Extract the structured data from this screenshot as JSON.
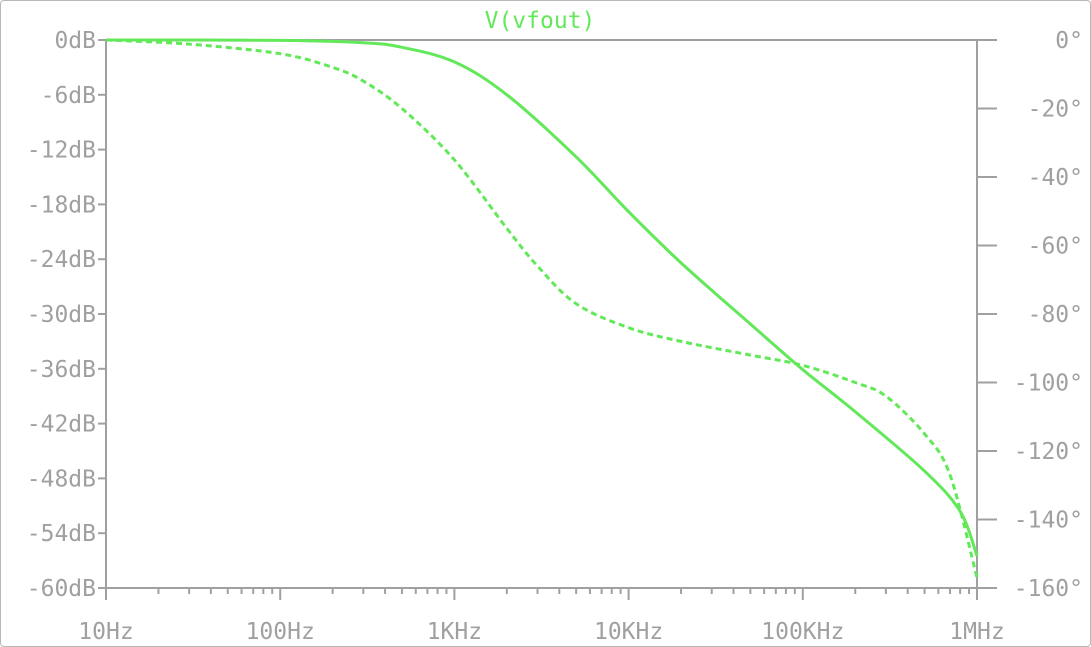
{
  "chart_data": {
    "type": "line",
    "title": "V(vfout)",
    "x_scale": "log",
    "x_ticks": [
      10,
      100,
      1000,
      10000,
      100000,
      1000000
    ],
    "x_tick_labels": [
      "10Hz",
      "100Hz",
      "1KHz",
      "10KHz",
      "100KHz",
      "1MHz"
    ],
    "xlim": [
      10,
      1000000
    ],
    "y_left_ticks": [
      0,
      -6,
      -12,
      -18,
      -24,
      -30,
      -36,
      -42,
      -48,
      -54,
      -60
    ],
    "y_left_tick_labels": [
      "0dB",
      "-6dB",
      "-12dB",
      "-18dB",
      "-24dB",
      "-30dB",
      "-36dB",
      "-42dB",
      "-48dB",
      "-54dB",
      "-60dB"
    ],
    "y_left_lim": [
      -60,
      0
    ],
    "y_right_ticks": [
      0,
      -20,
      -40,
      -60,
      -80,
      -100,
      -120,
      -140,
      -160
    ],
    "y_right_tick_labels": [
      "0°",
      "-20°",
      "-40°",
      "-60°",
      "-80°",
      "-100°",
      "-120°",
      "-140°",
      "-160°"
    ],
    "y_right_lim": [
      -160,
      0
    ],
    "grid": false,
    "color": "#63e85a",
    "axis_color": "#a0a0a0",
    "series": [
      {
        "axis": "left",
        "style": "solid",
        "x": [
          10,
          100,
          300,
          500,
          1000,
          2000,
          5000,
          10000,
          20000,
          50000,
          100000,
          200000,
          500000,
          800000,
          1000000
        ],
        "y": [
          0,
          -0.04,
          -0.3,
          -0.8,
          -2.4,
          -6.0,
          -12.8,
          -18.8,
          -24.4,
          -31.1,
          -36.1,
          -40.7,
          -47.2,
          -51.6,
          -56.5
        ]
      },
      {
        "axis": "right",
        "style": "dashed",
        "x": [
          10,
          30,
          100,
          200,
          300,
          500,
          1000,
          2000,
          3000,
          5000,
          10000,
          20000,
          50000,
          100000,
          200000,
          300000,
          500000,
          700000,
          1000000
        ],
        "y": [
          0,
          -1.2,
          -4,
          -8,
          -12,
          -20,
          -35,
          -55,
          -66,
          -77,
          -84,
          -88,
          -92,
          -95,
          -100,
          -104,
          -115,
          -127,
          -157
        ]
      }
    ]
  }
}
